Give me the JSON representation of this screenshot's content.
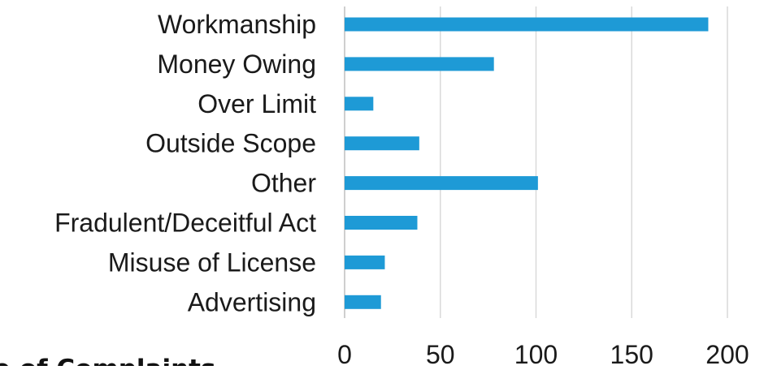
{
  "chart_data": {
    "type": "bar",
    "orientation": "horizontal",
    "categories": [
      "Workmanship",
      "Money Owing",
      "Over Limit",
      "Outside Scope",
      "Other",
      "Fradulent/Deceitful Act",
      "Misuse of License",
      "Advertising"
    ],
    "values": [
      190,
      78,
      15,
      39,
      101,
      38,
      21,
      19
    ],
    "xlim": [
      0,
      200
    ],
    "xticks": [
      "0",
      "50",
      "100",
      "150",
      "200"
    ],
    "xtick_values": [
      0,
      50,
      100,
      150,
      200
    ],
    "grid": true,
    "bar_color": "#1e9ad6",
    "footer_text": "e of Complaints"
  }
}
